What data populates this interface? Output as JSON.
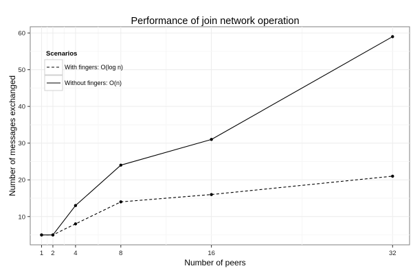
{
  "chart_data": {
    "type": "line",
    "title": "Performance of join network operation",
    "xlabel": "Number of peers",
    "ylabel": "Number of messages exchanged",
    "x": [
      1,
      2,
      4,
      8,
      16,
      32
    ],
    "x_ticks": [
      1,
      2,
      4,
      8,
      16,
      32
    ],
    "x_tick_labels": [
      "1",
      "2",
      "4",
      "8",
      "16",
      "32"
    ],
    "y_ticks": [
      10,
      20,
      30,
      40,
      50,
      60
    ],
    "y_tick_labels": [
      "10",
      "20",
      "30",
      "40",
      "50",
      "60"
    ],
    "xlim": [
      0,
      33.5
    ],
    "ylim": [
      2.3,
      61.7
    ],
    "grid": true,
    "legend": {
      "title": "Scenarios",
      "placement": "top-left"
    },
    "series": [
      {
        "name": "With fingers: O(log n)",
        "style": "dashed",
        "color": "#000000",
        "values": [
          5,
          5,
          8,
          14,
          16,
          21
        ]
      },
      {
        "name": "Without fingers: O(n)",
        "style": "solid",
        "color": "#000000",
        "values": [
          5,
          5,
          13,
          24,
          31,
          59
        ]
      }
    ]
  }
}
